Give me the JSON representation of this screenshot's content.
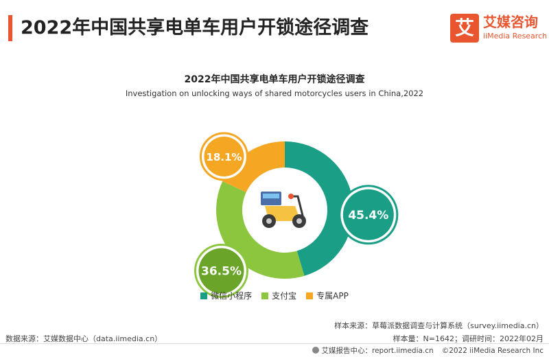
{
  "header": {
    "title": "2022年中国共享电单车用户开锁途径调查"
  },
  "logo": {
    "icon_text": "艾",
    "name_cn": "艾媒咨询",
    "name_en": "iiMedia Research"
  },
  "chart_data": {
    "type": "pie",
    "style": "donut",
    "title": "2022年中国共享电单车用户开锁途径调查",
    "subtitle": "Investigation on unlocking ways of shared motorcycles users in China,2022",
    "unit": "%",
    "labels": [
      "微信小程序",
      "支付宝",
      "专属APP"
    ],
    "values": [
      45.4,
      36.5,
      18.1
    ],
    "value_labels": [
      "45.4%",
      "36.5%",
      "18.1%"
    ],
    "colors": [
      "#1a9e86",
      "#8cc63e",
      "#f5a623"
    ],
    "bubble_colors": [
      "#1a9e86",
      "#6aa529",
      "#f5a623"
    ],
    "legend_position": "bottom",
    "center_icon": "scooter-icon"
  },
  "footer": {
    "sample_source": "样本来源：草莓派数据调查与计算系统（survey.iimedia.cn）",
    "data_source": "数据来源：艾媒数据中心（data.iimedia.cn）",
    "sample_info": "样本量：N=1642；调研时间：2022年02月",
    "report_center": "艾媒报告中心：report.iimedia.cn",
    "copyright": "©2022  iiMedia Research  Inc"
  }
}
